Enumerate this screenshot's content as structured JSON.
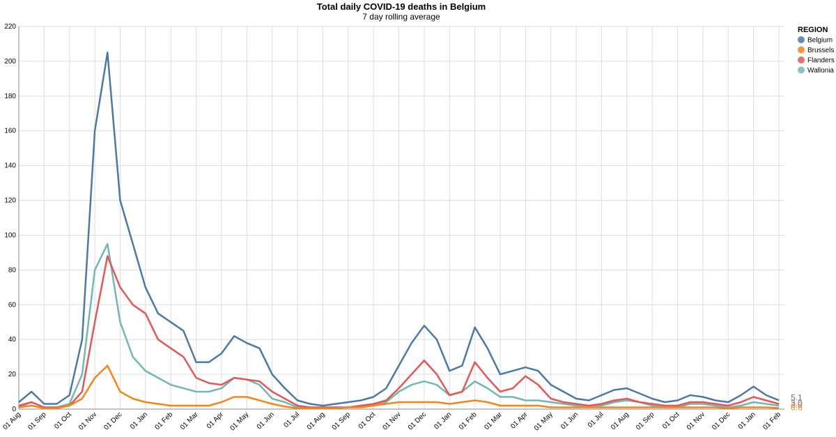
{
  "chart_data": {
    "type": "line",
    "title": "Total daily COVID-19 deaths in Belgium",
    "subtitle": "7 day rolling average",
    "legend_title": "REGION",
    "legend_position": "right",
    "grid": true,
    "ylim": [
      0,
      220
    ],
    "yticks": [
      0,
      20,
      40,
      60,
      80,
      100,
      120,
      140,
      160,
      180,
      200,
      220
    ],
    "categories": [
      "01 Aug",
      null,
      "01 Sep",
      null,
      "01 Oct",
      null,
      "01 Nov",
      null,
      "01 Dec",
      null,
      "01 Jan",
      null,
      "01 Feb",
      null,
      "01 Mar",
      null,
      "01 Apr",
      null,
      "01 May",
      null,
      "01 Jun",
      null,
      "01 Jul",
      null,
      "01 Aug",
      null,
      "01 Sep",
      null,
      "01 Oct",
      null,
      "01 Nov",
      null,
      "01 Dec",
      null,
      "01 Jan",
      null,
      "01 Feb",
      null,
      "01 Mar",
      null,
      "01 Apr",
      null,
      "01 May",
      null,
      "01 Jun",
      null,
      "01 Jul",
      null,
      "01 Aug",
      null,
      "01 Sep",
      null,
      "01 Oct",
      null,
      "01 Nov",
      null,
      "01 Dec",
      null,
      "01 Jan",
      null,
      "01 Feb"
    ],
    "series": [
      {
        "name": "Belgium",
        "color": "#4c78a8",
        "end_label": "5.1",
        "values": [
          4,
          10,
          3,
          3,
          8,
          40,
          160,
          205,
          120,
          95,
          70,
          55,
          50,
          45,
          27,
          27,
          32,
          42,
          38,
          35,
          20,
          12,
          5,
          3,
          2,
          3,
          4,
          5,
          7,
          12,
          25,
          38,
          48,
          40,
          22,
          25,
          47,
          35,
          20,
          22,
          24,
          22,
          14,
          10,
          6,
          5,
          8,
          11,
          12,
          9,
          6,
          4,
          5,
          8,
          7,
          5,
          4,
          8,
          13,
          8,
          5.1
        ]
      },
      {
        "name": "Brussels",
        "color": "#f58518",
        "end_label": "0.6",
        "values": [
          1,
          2,
          0.5,
          0.5,
          2,
          6,
          18,
          25,
          10,
          6,
          4,
          3,
          2,
          2,
          2,
          2,
          4,
          7,
          7,
          5,
          3,
          1.5,
          0.5,
          0.5,
          0.5,
          0.5,
          1,
          1,
          2,
          3,
          4,
          4,
          4,
          4,
          3,
          4,
          5,
          4,
          2,
          2,
          2,
          2,
          1,
          1,
          1,
          1,
          1,
          1,
          1,
          1,
          1,
          1,
          1,
          1,
          1,
          1,
          0.5,
          1,
          1,
          1,
          0.6
        ]
      },
      {
        "name": "Flanders",
        "color": "#e45756",
        "end_label": "3.0",
        "values": [
          2,
          4,
          1,
          1,
          2,
          10,
          50,
          88,
          70,
          60,
          55,
          40,
          35,
          30,
          18,
          15,
          14,
          18,
          17,
          16,
          10,
          6,
          2,
          1,
          1,
          1,
          1,
          2,
          3,
          5,
          12,
          20,
          28,
          20,
          8,
          10,
          27,
          18,
          10,
          12,
          19,
          14,
          6,
          4,
          3,
          2,
          3,
          5,
          6,
          4,
          3,
          2,
          2,
          4,
          4,
          3,
          2,
          4,
          7,
          5,
          3
        ]
      },
      {
        "name": "Wallonia",
        "color": "#72b7b2",
        "end_label": "2.0",
        "values": [
          1,
          4,
          1,
          1,
          3,
          20,
          80,
          95,
          50,
          30,
          22,
          18,
          14,
          12,
          10,
          10,
          12,
          18,
          17,
          14,
          6,
          4,
          1,
          1,
          1,
          1,
          1,
          2,
          2,
          4,
          10,
          14,
          16,
          14,
          8,
          10,
          16,
          12,
          7,
          7,
          5,
          5,
          4,
          3,
          2,
          2,
          2,
          4,
          5,
          4,
          2,
          1,
          1,
          3,
          3,
          2,
          1,
          2,
          4,
          3,
          2
        ]
      }
    ]
  }
}
